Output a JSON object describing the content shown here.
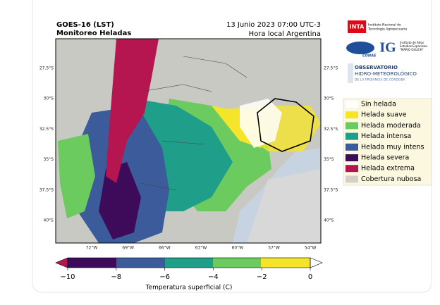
{
  "header": {
    "title": "GOES-16 (LST)",
    "subtitle": "Monitoreo Heladas",
    "date": "13 Junio 2023 07:00 UTC-3",
    "timezone": "Hora local Argentina"
  },
  "map": {
    "lat_labels": [
      "27.5°S",
      "30°S",
      "32.5°S",
      "35°S",
      "37.5°S",
      "40°S"
    ],
    "lon_labels": [
      "72°W",
      "69°W",
      "66°W",
      "63°W",
      "60°W",
      "57°W",
      "54°W"
    ]
  },
  "logos": {
    "inta": "INTA",
    "inta_name": [
      "Instituto Nacional de",
      "Tecnología Agropecuaria"
    ],
    "conae": "CONAE",
    "ig": "IG",
    "ig_name": [
      "Instituto de Altos",
      "Estudios Espaciales",
      "\"MARIO GULICH\""
    ],
    "observatorio": [
      "OBSERVATORIO",
      "HIDRO-METEOROLÓGICO",
      "DE LA PROVINCIA DE CÓRDOBA"
    ]
  },
  "legend": [
    {
      "label": "Sin helada",
      "color": "#ffffff"
    },
    {
      "label": "Helada suave",
      "color": "#f5e52a"
    },
    {
      "label": "Helada moderada",
      "color": "#6ccb5f"
    },
    {
      "label": "Helada intensa",
      "color": "#1f9e89"
    },
    {
      "label": "Helada muy intens",
      "color": "#3b5b9a"
    },
    {
      "label": "Helada severa",
      "color": "#3e0a5a"
    },
    {
      "label": "Helada extrema",
      "color": "#b5164f"
    },
    {
      "label": "Cobertura nubosa",
      "color": "#d4d0c8"
    }
  ],
  "colorbar": {
    "ticks": [
      "−10",
      "−8",
      "−6",
      "−4",
      "−2",
      "0"
    ],
    "label": "Temperatura superficial (C)"
  }
}
